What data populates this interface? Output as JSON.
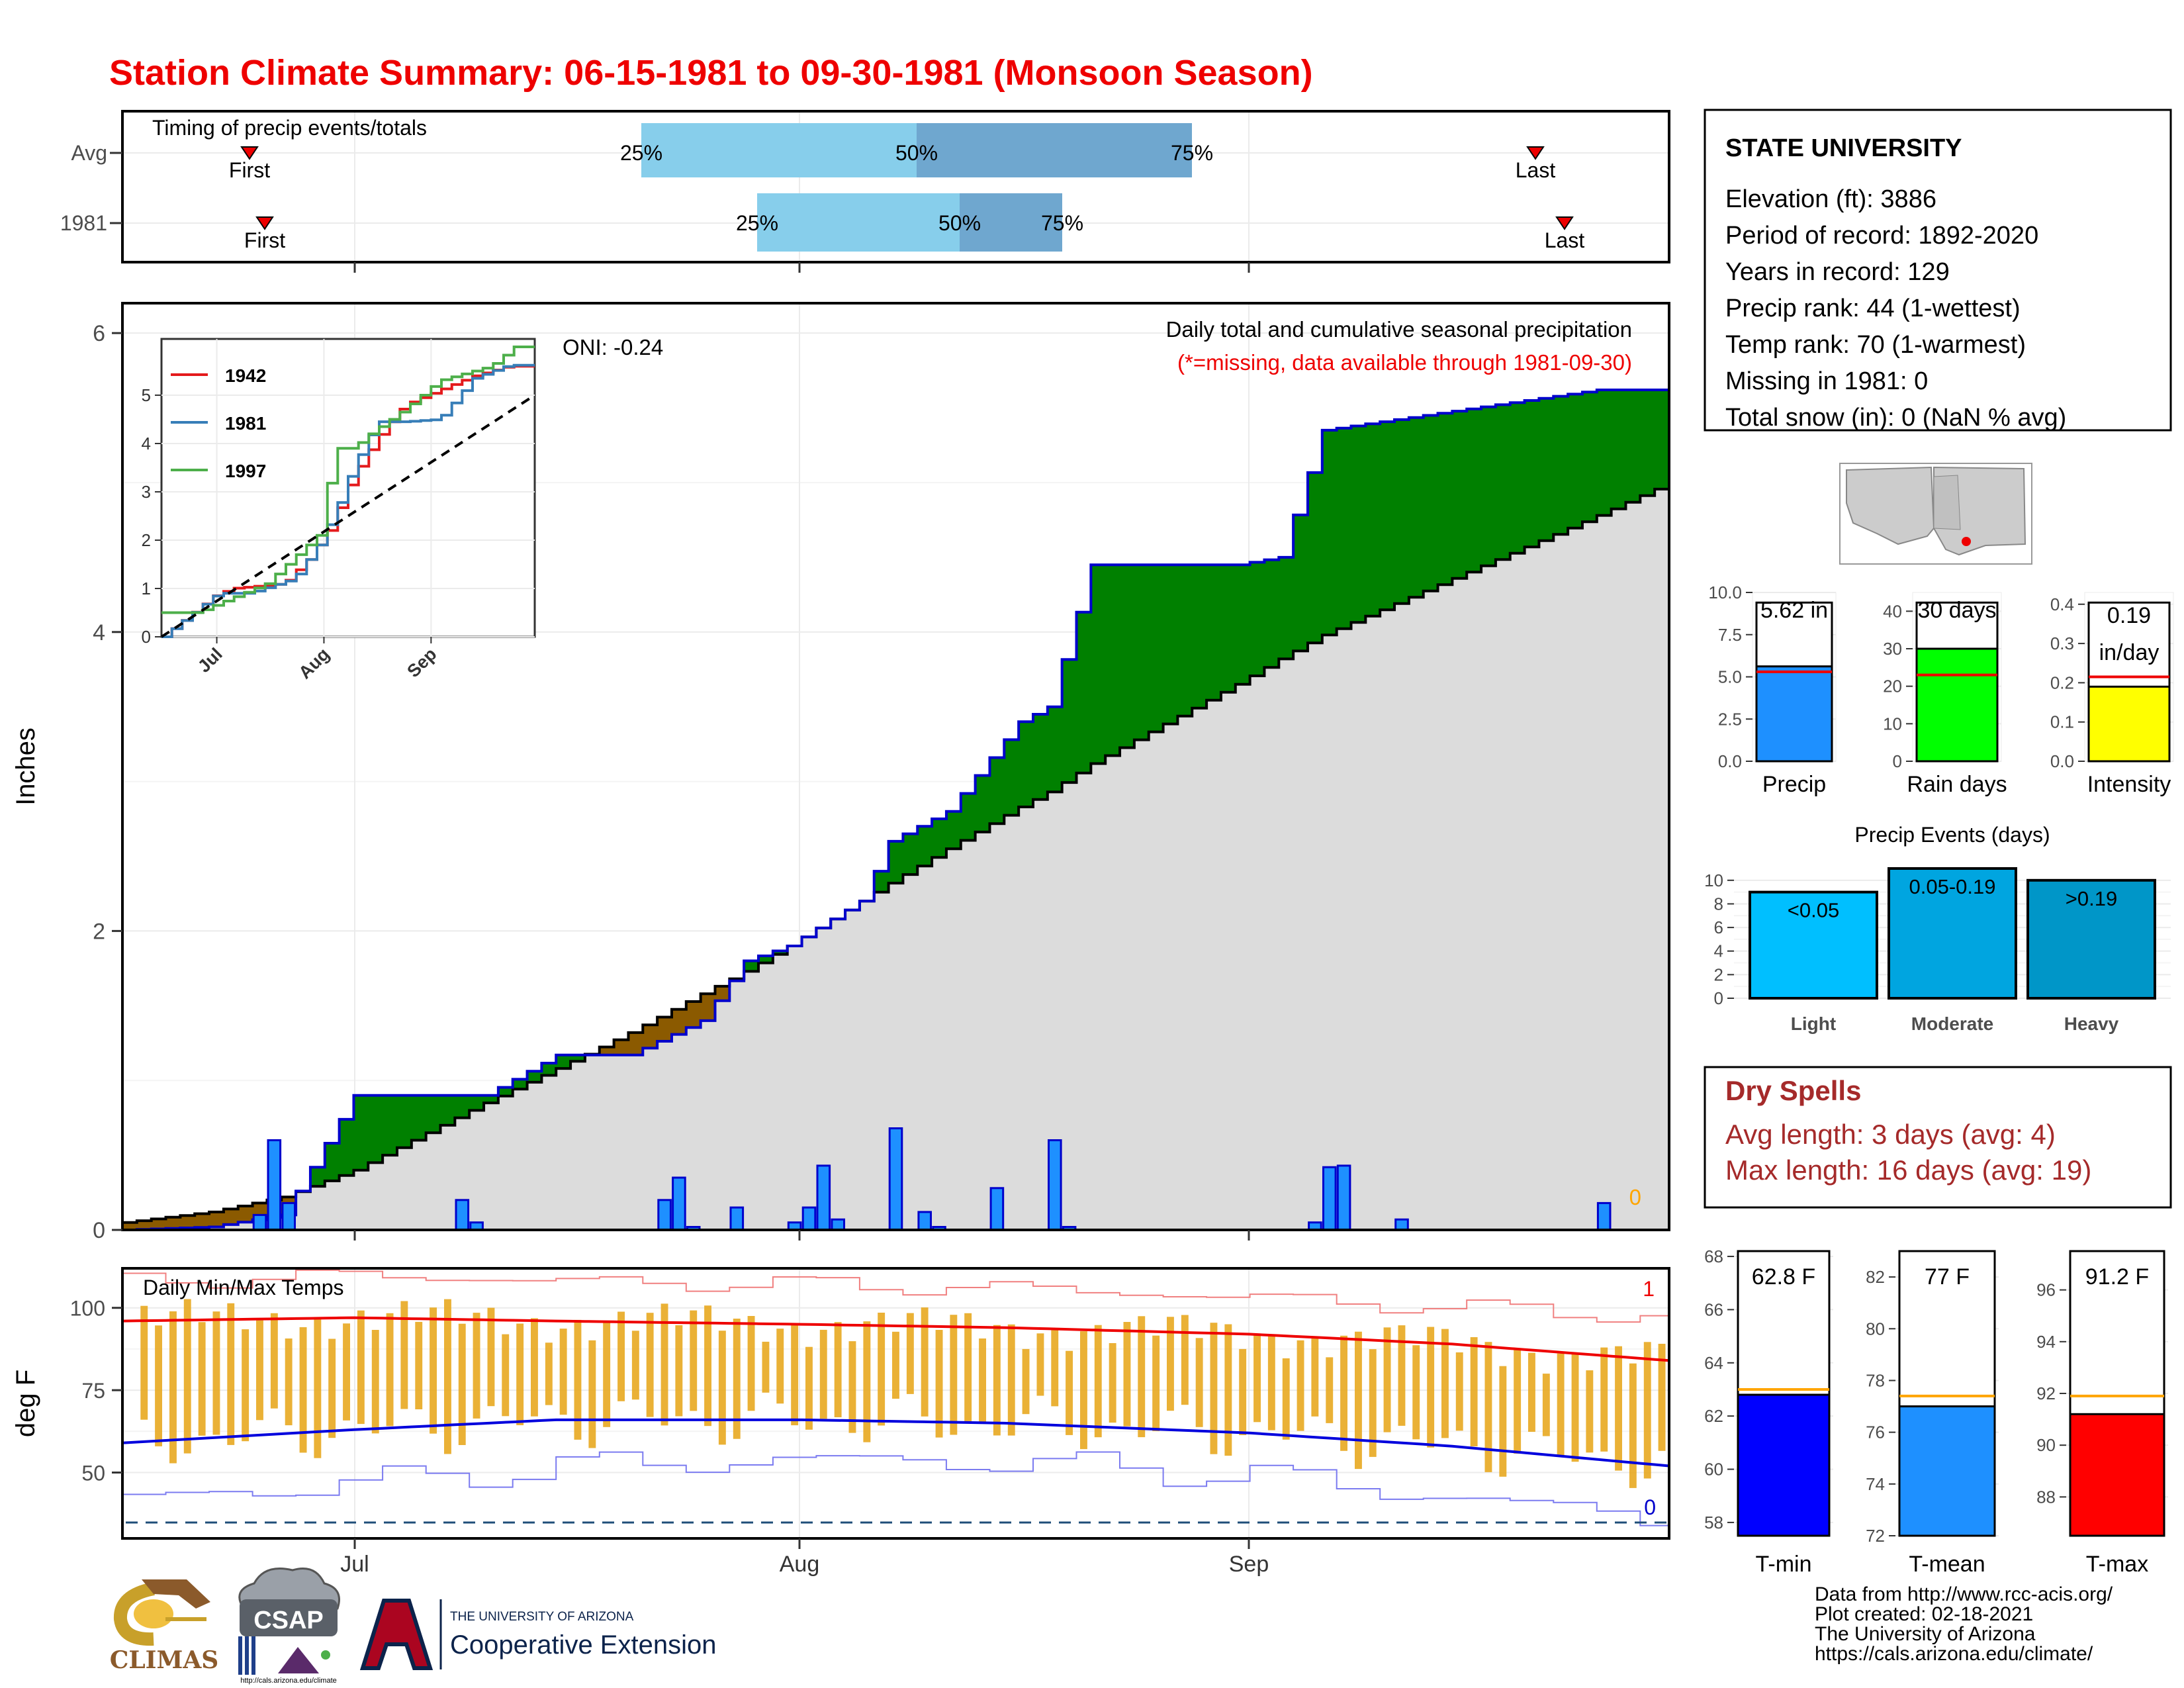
{
  "title": "Station Climate Summary: 06-15-1981 to 09-30-1981 (Monsoon Season)",
  "timing": {
    "label": "Timing of precip events/totals",
    "rows": [
      {
        "name": "Avg",
        "first_label": "First",
        "last_label": "Last",
        "p25": "25%",
        "p50": "50%",
        "p75": "75%"
      },
      {
        "name": "1981",
        "first_label": "First",
        "last_label": "Last",
        "p25": "25%",
        "p50": "50%",
        "p75": "75%"
      }
    ]
  },
  "station": {
    "name": "STATE UNIVERSITY",
    "lines": [
      "Elevation (ft): 3886",
      "Period of record: 1892-2020",
      "Years in record: 129",
      "Precip rank: 44 (1-wettest)",
      "Temp rank: 70 (1-warmest)",
      "Missing in 1981: 0",
      "Total snow (in): 0 (NaN % avg)"
    ]
  },
  "main": {
    "ylabel": "Inches",
    "oni": "ONI: -0.24",
    "caption": "Daily total and cumulative seasonal precipitation",
    "missing_note": "(*=missing, data available through 1981-09-30)",
    "missing_count": "0",
    "yticks": [
      "0",
      "2",
      "4",
      "6"
    ]
  },
  "inset": {
    "legend": [
      "1942",
      "1981",
      "1997"
    ],
    "yticks": [
      "0",
      "1",
      "2",
      "3",
      "4",
      "5"
    ],
    "xticks": [
      "Jul",
      "Aug",
      "Sep"
    ],
    "colors": {
      "1942": "#e41a1c",
      "1981": "#377eb8",
      "1997": "#4daf4a"
    }
  },
  "temps": {
    "label": "Daily Min/Max Temps",
    "ylabel": "deg F",
    "yticks": [
      "50",
      "75",
      "100"
    ],
    "xticks": [
      "Jul",
      "Aug",
      "Sep"
    ],
    "high_count": "1",
    "low_count": "0"
  },
  "mini_bars": [
    {
      "name": "Precip",
      "value_label": "5.62 in",
      "value": 5.62,
      "avg": 5.3,
      "ymax": 10,
      "yticks": [
        "0.0",
        "2.5",
        "5.0",
        "7.5",
        "10.0"
      ],
      "color": "#1e90ff"
    },
    {
      "name": "Rain days",
      "value_label": "30 days",
      "value": 30,
      "avg": 23,
      "ymax": 45,
      "yticks": [
        "0",
        "10",
        "20",
        "30",
        "40"
      ],
      "color": "#00ff00"
    },
    {
      "name": "Intensity",
      "value_label": "0.19\nin/day",
      "value": 0.19,
      "avg": 0.215,
      "ymax": 0.43,
      "yticks": [
        "0.0",
        "0.1",
        "0.2",
        "0.3",
        "0.4"
      ],
      "color": "#ffff00"
    }
  ],
  "events": {
    "title": "Precip Events (days)",
    "categories": [
      "Light",
      "Moderate",
      "Heavy"
    ],
    "labels": [
      "<0.05",
      "0.05-0.19",
      ">0.19"
    ],
    "values": [
      9,
      11,
      10
    ],
    "yticks": [
      "0",
      "2",
      "4",
      "6",
      "8",
      "10"
    ],
    "colors": [
      "#00bfff",
      "#00a5e0",
      "#0096c8"
    ]
  },
  "dry_spells": {
    "title": "Dry Spells",
    "avg_length": "Avg length: 3 days (avg: 4)",
    "max_length": "Max length: 16 days (avg: 19)"
  },
  "temp_bars": [
    {
      "name": "T-min",
      "value_label": "62.8 F",
      "value": 62.8,
      "avg": 63.0,
      "ymin": 57.5,
      "ymax": 68.2,
      "yticks": [
        "58",
        "60",
        "62",
        "64",
        "66",
        "68"
      ],
      "color": "#0000ff"
    },
    {
      "name": "T-mean",
      "value_label": "77 F",
      "value": 77.0,
      "avg": 77.4,
      "ymin": 72,
      "ymax": 83,
      "yticks": [
        "72",
        "74",
        "76",
        "78",
        "80",
        "82"
      ],
      "color": "#1e90ff"
    },
    {
      "name": "T-max",
      "value_label": "91.2 F",
      "value": 91.2,
      "avg": 91.9,
      "ymin": 86.5,
      "ymax": 97.5,
      "yticks": [
        "88",
        "90",
        "92",
        "94",
        "96"
      ],
      "color": "#ff0000"
    }
  ],
  "footer": {
    "lines": [
      "Data from http://www.rcc-acis.org/",
      "Plot created: 02-18-2021",
      "The University of Arizona",
      "https://cals.arizona.edu/climate/"
    ],
    "climas": "CLIMAS",
    "csap": "CSAP",
    "csap_url": "http://cals.arizona.edu/climate",
    "ua_name": "THE UNIVERSITY OF ARIZONA",
    "coop": "Cooperative Extension"
  },
  "chart_data": [
    {
      "type": "area",
      "title": "Daily total and cumulative seasonal precipitation",
      "ylabel": "Inches",
      "ylim": [
        0,
        6.2
      ],
      "x_dates": [
        "06-15",
        "06-21",
        "06-26",
        "07-01",
        "07-10",
        "07-15",
        "07-20",
        "07-25",
        "07-28",
        "07-31",
        "08-05",
        "08-07",
        "08-11",
        "08-16",
        "08-18",
        "08-21",
        "08-31",
        "09-03",
        "09-06",
        "09-25",
        "09-30"
      ],
      "series": [
        {
          "name": "1981",
          "values": [
            0.0,
            0.02,
            0.1,
            0.9,
            0.9,
            1.17,
            1.17,
            1.4,
            1.8,
            1.9,
            2.2,
            2.6,
            2.8,
            3.4,
            3.5,
            4.45,
            4.45,
            4.5,
            5.35,
            5.62,
            5.62
          ]
        },
        {
          "name": "Avg",
          "values": [
            0.05,
            0.12,
            0.22,
            0.4,
            0.85,
            1.08,
            1.32,
            1.58,
            1.73,
            1.9,
            2.2,
            2.32,
            2.55,
            2.83,
            2.93,
            3.12,
            3.65,
            3.82,
            3.98,
            4.78,
            5.0
          ]
        }
      ],
      "bars": {
        "name": "Daily precipitation",
        "dates": [
          "06-24",
          "06-25",
          "06-26",
          "07-08",
          "07-09",
          "07-22",
          "07-23",
          "07-24",
          "07-27",
          "07-31",
          "08-01",
          "08-02",
          "08-03",
          "08-07",
          "08-09",
          "08-10",
          "08-14",
          "08-18",
          "08-19",
          "09-05",
          "09-06",
          "09-07",
          "09-11",
          "09-25"
        ],
        "values": [
          0.1,
          0.6,
          0.18,
          0.2,
          0.05,
          0.2,
          0.35,
          0.02,
          0.15,
          0.05,
          0.15,
          0.43,
          0.07,
          0.68,
          0.12,
          0.02,
          0.28,
          0.6,
          0.02,
          0.05,
          0.42,
          0.43,
          0.07,
          0.18
        ]
      }
    },
    {
      "type": "line",
      "title": "",
      "xticks": [
        "Jul",
        "Aug",
        "Sep"
      ],
      "ylim": [
        0,
        6
      ],
      "series": [
        {
          "name": "1942",
          "x": [
            0,
            15,
            20,
            35,
            42,
            48,
            55,
            62,
            70,
            80,
            90,
            100,
            108
          ],
          "y": [
            0,
            0.85,
            1.0,
            1.1,
            1.6,
            2.2,
            3.3,
            4.1,
            4.8,
            5.1,
            5.4,
            5.6,
            5.6
          ]
        },
        {
          "name": "1981",
          "x": [
            0,
            16,
            25,
            38,
            45,
            50,
            55,
            62,
            70,
            80,
            90,
            100,
            108
          ],
          "y": [
            0,
            0.9,
            0.9,
            1.2,
            1.9,
            2.6,
            3.5,
            4.45,
            4.45,
            4.5,
            5.35,
            5.62,
            5.62
          ]
        },
        {
          "name": "1997",
          "x": [
            0,
            10,
            20,
            30,
            45,
            50,
            55,
            60,
            70,
            80,
            95,
            102,
            108
          ],
          "y": [
            0.5,
            0.5,
            0.8,
            1.1,
            2.1,
            3.9,
            3.9,
            4.2,
            4.7,
            5.3,
            5.6,
            6.0,
            6.0
          ]
        },
        {
          "name": "Avg",
          "x": [
            0,
            108
          ],
          "y": [
            0,
            5.0
          ]
        }
      ]
    },
    {
      "type": "line",
      "title": "Daily Min/Max Temps",
      "ylabel": "deg F",
      "ylim": [
        30,
        112
      ],
      "x_dates": [
        "06-15",
        "07-01",
        "07-15",
        "08-01",
        "08-15",
        "09-01",
        "09-15",
        "09-30"
      ],
      "series": [
        {
          "name": "Avg max",
          "values": [
            96,
            97,
            96,
            95,
            94,
            92,
            89,
            84
          ]
        },
        {
          "name": "Avg min",
          "values": [
            59,
            63,
            66,
            66,
            65,
            62,
            58,
            52
          ]
        },
        {
          "name": "Record high",
          "values": [
            108,
            110,
            108,
            107,
            106,
            103,
            100,
            97
          ]
        },
        {
          "name": "Record low",
          "values": [
            42,
            47,
            52,
            54,
            53,
            49,
            42,
            36
          ]
        }
      ]
    },
    {
      "type": "bar",
      "title": "Precip Events (days)",
      "categories": [
        "Light",
        "Moderate",
        "Heavy"
      ],
      "values": [
        9,
        11,
        10
      ],
      "ylim": [
        0,
        11
      ]
    }
  ]
}
